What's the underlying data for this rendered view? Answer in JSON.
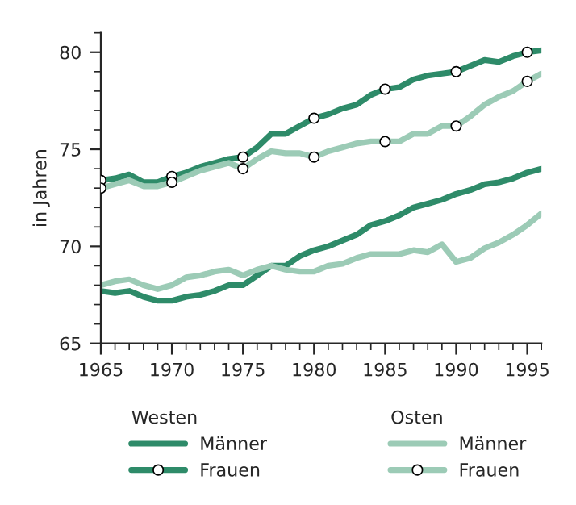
{
  "chart_data": {
    "type": "line",
    "ylabel": "in Jahren",
    "x": [
      1965,
      1966,
      1967,
      1968,
      1969,
      1970,
      1971,
      1972,
      1973,
      1974,
      1975,
      1976,
      1977,
      1978,
      1979,
      1980,
      1981,
      1982,
      1983,
      1984,
      1985,
      1986,
      1987,
      1988,
      1989,
      1990,
      1991,
      1992,
      1993,
      1994,
      1995,
      1996
    ],
    "series": [
      {
        "name": "Männer",
        "color": "#2e8b69",
        "values": [
          67.7,
          67.6,
          67.7,
          67.4,
          67.2,
          67.2,
          67.4,
          67.5,
          67.7,
          68.0,
          68.0,
          68.5,
          69.0,
          69.0,
          69.5,
          69.8,
          70.0,
          70.3,
          70.6,
          71.1,
          71.3,
          71.6,
          72.0,
          72.2,
          72.4,
          72.7,
          72.9,
          73.2,
          73.3,
          73.5,
          73.8,
          74.0
        ]
      },
      {
        "name": "Frauen",
        "color": "#2e8b69",
        "values": [
          73.4,
          73.5,
          73.7,
          73.3,
          73.3,
          73.6,
          73.8,
          74.1,
          74.3,
          74.5,
          74.6,
          75.1,
          75.8,
          75.8,
          76.2,
          76.6,
          76.8,
          77.1,
          77.3,
          77.8,
          78.1,
          78.2,
          78.6,
          78.8,
          78.9,
          79.0,
          79.3,
          79.6,
          79.5,
          79.8,
          80.0,
          80.1
        ]
      },
      {
        "type": "scatter",
        "marker": "circle",
        "color": "#ffffff",
        "x": [
          1965,
          1970,
          1975,
          1980,
          1985,
          1990,
          1995
        ],
        "values": [
          73.4,
          73.6,
          74.6,
          76.6,
          78.1,
          79.0,
          80.0
        ]
      },
      {
        "name": "Männer",
        "color": "#9ccbb6",
        "values": [
          68.0,
          68.2,
          68.3,
          68.0,
          67.8,
          68.0,
          68.4,
          68.5,
          68.7,
          68.8,
          68.5,
          68.8,
          69.0,
          68.8,
          68.7,
          68.7,
          69.0,
          69.1,
          69.4,
          69.6,
          69.6,
          69.6,
          69.8,
          69.7,
          70.1,
          69.2,
          69.4,
          69.9,
          70.2,
          70.6,
          71.1,
          71.7
        ]
      },
      {
        "name": "Frauen",
        "color": "#9ccbb6",
        "values": [
          73.0,
          73.2,
          73.4,
          73.1,
          73.1,
          73.3,
          73.6,
          73.9,
          74.1,
          74.3,
          74.0,
          74.5,
          74.9,
          74.8,
          74.8,
          74.6,
          74.9,
          75.1,
          75.3,
          75.4,
          75.4,
          75.4,
          75.8,
          75.8,
          76.2,
          76.2,
          76.7,
          77.3,
          77.7,
          78.0,
          78.5,
          78.9
        ]
      },
      {
        "type": "scatter",
        "marker": "circle",
        "color": "#ffffff",
        "x": [
          1965,
          1970,
          1975,
          1980,
          1985,
          1990,
          1995
        ],
        "values": [
          73.0,
          73.3,
          74.0,
          74.6,
          75.4,
          76.2,
          78.5
        ]
      }
    ],
    "legend_title": [
      "Westen",
      "Osten"
    ],
    "legend": "bottom",
    "xlim": [
      1965,
      1996
    ],
    "xticks": [
      1965,
      1970,
      1975,
      1980,
      1985,
      1990,
      1995
    ],
    "ylim": [
      65,
      81
    ],
    "yticks": [
      65,
      70,
      75,
      80
    ],
    "grid": false,
    "line_style": "solid"
  }
}
